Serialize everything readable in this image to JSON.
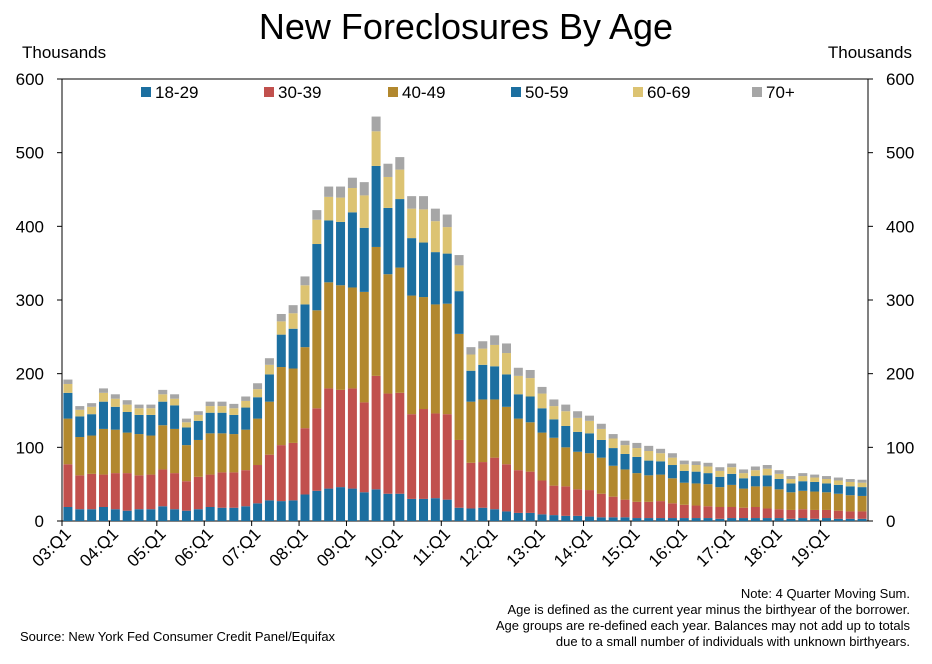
{
  "chart_data": {
    "type": "bar",
    "stacked": true,
    "title": "New Foreclosures By Age",
    "ylabel_left": "Thousands",
    "ylabel_right": "Thousands",
    "ylim": [
      0,
      600
    ],
    "yticks": [
      0,
      100,
      200,
      300,
      400,
      500,
      600
    ],
    "grid": false,
    "legend_position": "top",
    "x_tick_labels": [
      "03:Q1",
      "04:Q1",
      "05:Q1",
      "06:Q1",
      "07:Q1",
      "08:Q1",
      "09:Q1",
      "10:Q1",
      "11:Q1",
      "12:Q1",
      "13:Q1",
      "14:Q1",
      "15:Q1",
      "16:Q1",
      "17:Q1",
      "18:Q1",
      "19:Q1"
    ],
    "categories": [
      "03:Q1",
      "03:Q2",
      "03:Q3",
      "03:Q4",
      "04:Q1",
      "04:Q2",
      "04:Q3",
      "04:Q4",
      "05:Q1",
      "05:Q2",
      "05:Q3",
      "05:Q4",
      "06:Q1",
      "06:Q2",
      "06:Q3",
      "06:Q4",
      "07:Q1",
      "07:Q2",
      "07:Q3",
      "07:Q4",
      "08:Q1",
      "08:Q2",
      "08:Q3",
      "08:Q4",
      "09:Q1",
      "09:Q2",
      "09:Q3",
      "09:Q4",
      "10:Q1",
      "10:Q2",
      "10:Q3",
      "10:Q4",
      "11:Q1",
      "11:Q2",
      "11:Q3",
      "11:Q4",
      "12:Q1",
      "12:Q2",
      "12:Q3",
      "12:Q4",
      "13:Q1",
      "13:Q2",
      "13:Q3",
      "13:Q4",
      "14:Q1",
      "14:Q2",
      "14:Q3",
      "14:Q4",
      "15:Q1",
      "15:Q2",
      "15:Q3",
      "15:Q4",
      "16:Q1",
      "16:Q2",
      "16:Q3",
      "16:Q4",
      "17:Q1",
      "17:Q2",
      "17:Q3",
      "17:Q4",
      "18:Q1",
      "18:Q2",
      "18:Q3",
      "18:Q4",
      "19:Q1",
      "19:Q2",
      "19:Q3",
      "19:Q4"
    ],
    "series": [
      {
        "name": "18-29",
        "color": "#1c6fa0",
        "values": [
          19,
          16,
          16,
          19,
          16,
          14,
          16,
          16,
          20,
          16,
          14,
          16,
          19,
          18,
          18,
          20,
          24,
          28,
          27,
          28,
          36,
          41,
          44,
          46,
          44,
          39,
          43,
          37,
          37,
          30,
          30,
          31,
          29,
          18,
          17,
          18,
          16,
          13,
          11,
          11,
          9,
          8,
          7,
          7,
          6,
          5,
          5,
          5,
          4,
          4,
          4,
          4,
          4,
          4,
          4,
          3,
          4,
          4,
          4,
          4,
          4,
          3,
          4,
          3,
          4,
          3,
          3,
          3
        ]
      },
      {
        "name": "30-39",
        "color": "#c1504d",
        "values": [
          58,
          46,
          48,
          44,
          49,
          51,
          46,
          47,
          50,
          49,
          40,
          44,
          44,
          48,
          48,
          49,
          52,
          62,
          76,
          78,
          90,
          112,
          136,
          132,
          136,
          122,
          154,
          136,
          137,
          115,
          122,
          115,
          116,
          92,
          62,
          62,
          70,
          64,
          58,
          56,
          46,
          40,
          40,
          36,
          36,
          32,
          28,
          24,
          22,
          22,
          23,
          20,
          18,
          17,
          16,
          16,
          15,
          14,
          15,
          13,
          12,
          12,
          12,
          12,
          11,
          11,
          10,
          10
        ]
      },
      {
        "name": "40-49",
        "color": "#b2882e",
        "values": [
          62,
          52,
          52,
          62,
          59,
          55,
          56,
          53,
          60,
          60,
          49,
          50,
          56,
          53,
          52,
          55,
          63,
          72,
          106,
          101,
          110,
          133,
          144,
          142,
          137,
          150,
          175,
          162,
          170,
          161,
          152,
          148,
          150,
          144,
          83,
          85,
          79,
          78,
          70,
          67,
          65,
          65,
          53,
          51,
          50,
          49,
          42,
          41,
          39,
          36,
          36,
          34,
          30,
          30,
          30,
          27,
          30,
          26,
          28,
          30,
          27,
          24,
          25,
          25,
          24,
          23,
          22,
          21
        ]
      },
      {
        "name": "50-59",
        "color": "#1c6fa0",
        "values": [
          35,
          28,
          29,
          37,
          31,
          28,
          26,
          28,
          32,
          32,
          24,
          26,
          28,
          28,
          26,
          30,
          29,
          37,
          44,
          54,
          58,
          90,
          84,
          86,
          102,
          87,
          110,
          90,
          93,
          78,
          74,
          71,
          68,
          58,
          42,
          47,
          45,
          44,
          33,
          35,
          33,
          25,
          29,
          27,
          27,
          24,
          24,
          21,
          22,
          20,
          18,
          18,
          16,
          16,
          15,
          14,
          15,
          14,
          14,
          15,
          14,
          12,
          13,
          13,
          12,
          12,
          12,
          12
        ]
      },
      {
        "name": "60-69",
        "color": "#dcc372",
        "values": [
          12,
          9,
          10,
          12,
          11,
          10,
          9,
          9,
          10,
          9,
          7,
          8,
          9,
          9,
          9,
          9,
          11,
          13,
          18,
          21,
          26,
          33,
          32,
          33,
          33,
          44,
          47,
          42,
          40,
          40,
          45,
          42,
          36,
          35,
          22,
          22,
          29,
          29,
          25,
          25,
          20,
          18,
          20,
          19,
          17,
          15,
          13,
          12,
          12,
          13,
          11,
          10,
          9,
          9,
          9,
          8,
          9,
          7,
          8,
          9,
          7,
          6,
          7,
          6,
          6,
          6,
          6,
          6
        ]
      },
      {
        "name": "70+",
        "color": "#a6a6a6",
        "values": [
          6,
          5,
          5,
          6,
          6,
          6,
          5,
          5,
          6,
          6,
          5,
          5,
          6,
          6,
          6,
          6,
          8,
          9,
          10,
          11,
          12,
          13,
          14,
          15,
          14,
          18,
          20,
          18,
          17,
          17,
          18,
          17,
          17,
          14,
          10,
          10,
          13,
          13,
          11,
          11,
          9,
          9,
          9,
          9,
          7,
          7,
          6,
          6,
          7,
          7,
          6,
          6,
          5,
          5,
          5,
          5,
          5,
          5,
          5,
          5,
          5,
          4,
          4,
          4,
          4,
          4,
          4,
          4
        ]
      }
    ]
  },
  "note": {
    "line1": "Note: 4 Quarter Moving Sum.",
    "line2": "Age is defined as the current year minus the birthyear of the borrower.",
    "line3": "Age groups are re-defined each year. Balances may not add up to totals",
    "line4": "due to a small number of individuals with unknown birthyears."
  },
  "source": "Source: New York Fed Consumer Credit Panel/Equifax"
}
